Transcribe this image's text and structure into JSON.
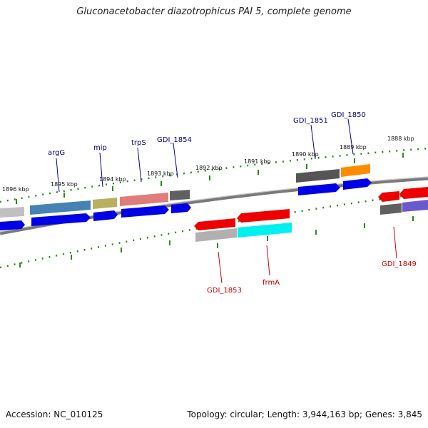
{
  "title": "Gluconacetobacter diazotrophicus PAI 5, complete genome",
  "accession": "Accession: NC_010125",
  "summary": "Topology: circular; Length: 3,944,163 bp; Genes: 3,845",
  "colors": {
    "forward_label": "#00008b",
    "reverse_label": "#cc0000",
    "ticks": "#2a8a1a",
    "backbone": "#7a7a7a"
  },
  "ticks": [
    "1896 kbp",
    "1895 kbp",
    "1894 kbp",
    "1893 kbp",
    "1892 kbp",
    "1891 kbp",
    "1890 kbp",
    "1889 kbp",
    "1888 kbp"
  ],
  "forward_genes": [
    "argG",
    "mip",
    "trpS",
    "GDI_1854",
    "GDI_1851",
    "GDI_1850"
  ],
  "reverse_genes": [
    "GDI_1853",
    "frmA",
    "GDI_1849"
  ]
}
